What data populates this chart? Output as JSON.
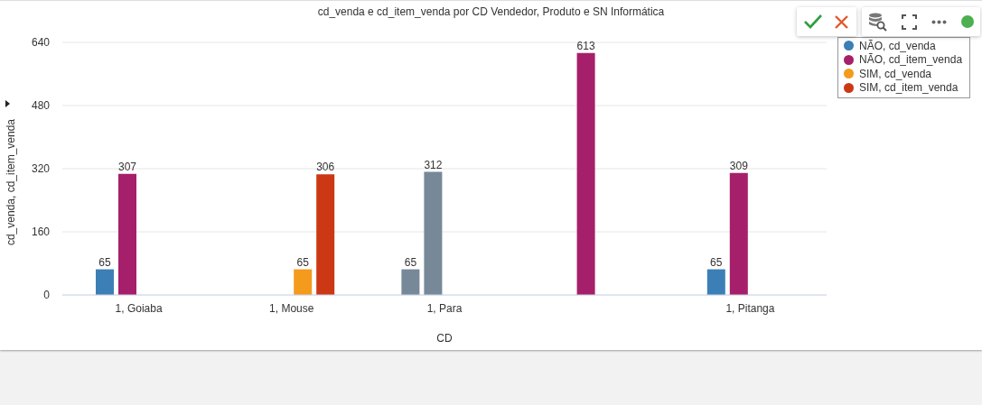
{
  "chart_data": {
    "type": "bar",
    "title": "cd_venda e cd_item_venda por CD Vendedor, Produto e SN Informática",
    "xlabel": "CD",
    "ylabel": "cd_venda, cd_item_venda",
    "categories": [
      "1, Goiaba",
      "1, Mouse",
      "1, Para",
      null,
      "1, Pitanga"
    ],
    "series": [
      {
        "name": "NÃO, cd_venda",
        "color": "#3b7fb6",
        "colors": [
          "#3b7fb6",
          "#3b7fb6",
          "#778899",
          "#3b7fb6",
          "#3b7fb6"
        ],
        "values": [
          65,
          null,
          65,
          null,
          65
        ]
      },
      {
        "name": "NÃO, cd_item_venda",
        "color": "#a61f6a",
        "colors": [
          "#a61f6a",
          "#a61f6a",
          "#778899",
          "#a61f6a",
          "#a61f6a"
        ],
        "values": [
          307,
          null,
          312,
          613,
          309
        ]
      },
      {
        "name": "SIM, cd_venda",
        "color": "#f49a1c",
        "values": [
          null,
          65,
          null,
          null,
          null
        ]
      },
      {
        "name": "SIM, cd_item_venda",
        "color": "#cc3714",
        "values": [
          null,
          306,
          null,
          null,
          null
        ]
      }
    ],
    "ylim": [
      0,
      640
    ],
    "yticks": [
      0,
      160,
      320,
      480,
      640
    ],
    "grid": "y",
    "legend": "top right",
    "data_labels": true
  }
}
